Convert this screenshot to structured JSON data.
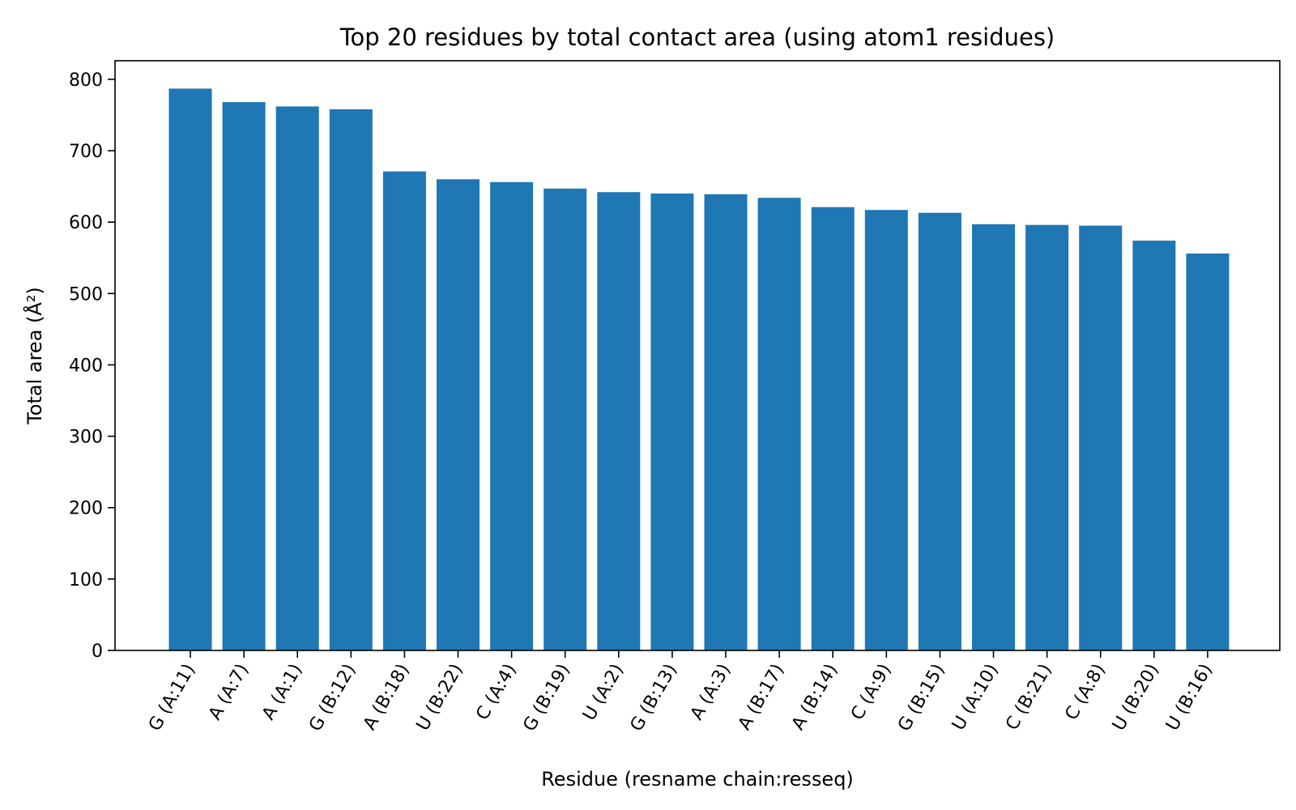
{
  "chart_data": {
    "type": "bar",
    "title": "Top 20 residues by total contact area (using atom1 residues)",
    "xlabel": "Residue (resname chain:resseq)",
    "ylabel": "Total area (Å²)",
    "ylim": [
      0,
      826
    ],
    "yticks": [
      0,
      100,
      200,
      300,
      400,
      500,
      600,
      700,
      800
    ],
    "ytick_labels": [
      "0",
      "100",
      "200",
      "300",
      "400",
      "500",
      "600",
      "700",
      "800"
    ],
    "grid": false,
    "bar_color": "#1f77b4",
    "categories": [
      "G (A:11)",
      "A (A:7)",
      "A (A:1)",
      "G (B:12)",
      "A (B:18)",
      "U (B:22)",
      "C (A:4)",
      "G (B:19)",
      "U (A:2)",
      "G (B:13)",
      "A (A:3)",
      "A (B:17)",
      "A (B:14)",
      "C (A:9)",
      "G (B:15)",
      "U (A:10)",
      "C (B:21)",
      "C (A:8)",
      "U (B:20)",
      "U (B:16)"
    ],
    "values": [
      787,
      768,
      762,
      758,
      671,
      660,
      656,
      647,
      642,
      640,
      639,
      634,
      621,
      617,
      613,
      597,
      596,
      595,
      574,
      556
    ]
  }
}
